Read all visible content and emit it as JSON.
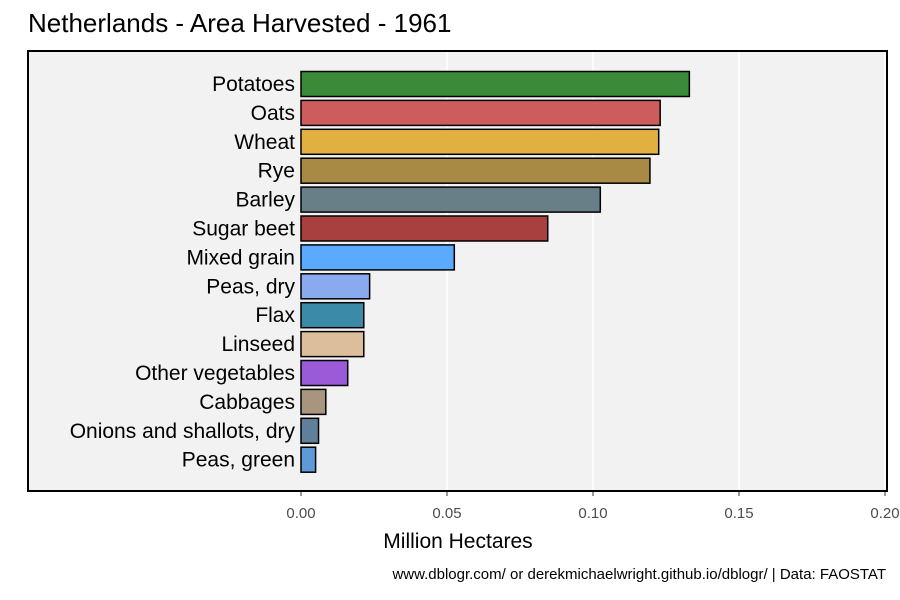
{
  "chart_data": {
    "type": "bar",
    "orientation": "horizontal",
    "title": "Netherlands - Area Harvested - 1961",
    "xlabel": "Million Hectares",
    "ylabel": "",
    "caption": "www.dblogr.com/ or derekmichaelwright.github.io/dblogr/ | Data: FAOSTAT",
    "xlim": [
      0,
      0.2
    ],
    "xticks": [
      0,
      0.05,
      0.1,
      0.15,
      0.2
    ],
    "xtick_labels": [
      "0.00",
      "0.05",
      "0.10",
      "0.15",
      "0.20"
    ],
    "grid": true,
    "legend": "none",
    "categories": [
      "Potatoes",
      "Oats",
      "Wheat",
      "Rye",
      "Barley",
      "Sugar beet",
      "Mixed grain",
      "Peas, dry",
      "Flax",
      "Linseed",
      "Other vegetables",
      "Cabbages",
      "Onions and shallots, dry",
      "Peas, green"
    ],
    "values": [
      0.133,
      0.123,
      0.1225,
      0.1195,
      0.1025,
      0.0845,
      0.0525,
      0.0235,
      0.0215,
      0.0215,
      0.016,
      0.0085,
      0.006,
      0.005
    ],
    "colors": [
      "#3a8a3a",
      "#cd5c5c",
      "#e1b040",
      "#a88a45",
      "#687f87",
      "#a84040",
      "#5caaff",
      "#8aaaf0",
      "#3a8aa8",
      "#dcbf9a",
      "#9b5ad8",
      "#a89580",
      "#5f7f9a",
      "#5f9ad8"
    ]
  }
}
